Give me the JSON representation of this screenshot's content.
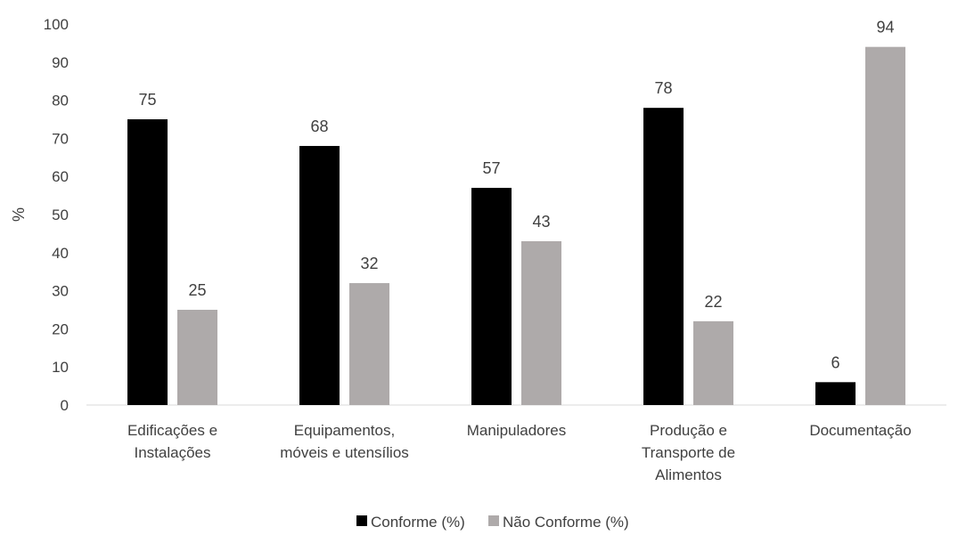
{
  "chart_data": {
    "type": "bar",
    "title": "",
    "xlabel": "",
    "ylabel": "%",
    "ylim": [
      0,
      100
    ],
    "yticks": [
      0,
      10,
      20,
      30,
      40,
      50,
      60,
      70,
      80,
      90,
      100
    ],
    "grid": false,
    "legend_position": "bottom",
    "categories": [
      [
        "Edificações e",
        "Instalações"
      ],
      [
        "Equipamentos,",
        "móveis e utensílios"
      ],
      [
        "Manipuladores"
      ],
      [
        "Produção e",
        "Transporte de",
        "Alimentos"
      ],
      [
        "Documentação"
      ]
    ],
    "series": [
      {
        "name": "Conforme (%)",
        "color": "#000000",
        "values": [
          75,
          68,
          57,
          78,
          6
        ]
      },
      {
        "name": "Não Conforme (%)",
        "color": "#aeaaaa",
        "values": [
          25,
          32,
          43,
          22,
          94
        ]
      }
    ]
  }
}
